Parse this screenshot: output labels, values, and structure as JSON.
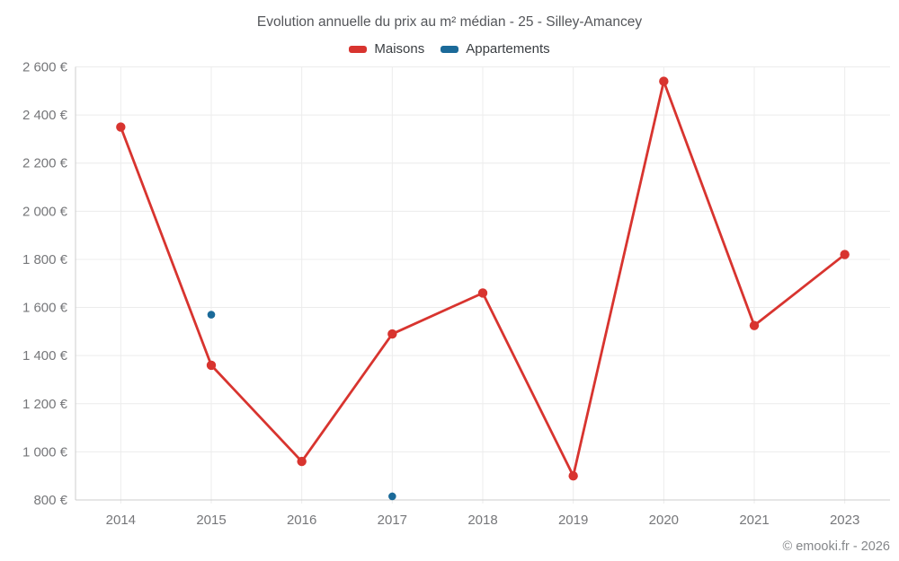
{
  "chart_data": {
    "type": "line",
    "title": "Evolution annuelle du prix au m² médian - 25 - Silley-Amancey",
    "categories": [
      "2014",
      "2015",
      "2016",
      "2017",
      "2018",
      "2019",
      "2020",
      "2021",
      "2023"
    ],
    "series": [
      {
        "name": "Maisons",
        "color": "#d8342f",
        "values": [
          2350,
          1360,
          960,
          1490,
          1660,
          900,
          2540,
          1525,
          1820
        ]
      },
      {
        "name": "Appartements",
        "color": "#1b6a99",
        "values": [
          null,
          1570,
          null,
          815,
          null,
          null,
          null,
          null,
          null
        ]
      }
    ],
    "ylim": [
      800,
      2600
    ],
    "ytick_step": 200,
    "ytick_suffix": "€",
    "currency_format": "fr",
    "grid": true,
    "legend_position": "top",
    "footer": "© emooki.fr - 2026",
    "colors": {
      "grid_line": "#ececec",
      "axis_line": "#cccccc",
      "tick_label": "#76777a",
      "title_text": "#54565a",
      "legend_text": "#3a3e42",
      "footer_text": "#85878a",
      "background": "#ffffff"
    }
  }
}
